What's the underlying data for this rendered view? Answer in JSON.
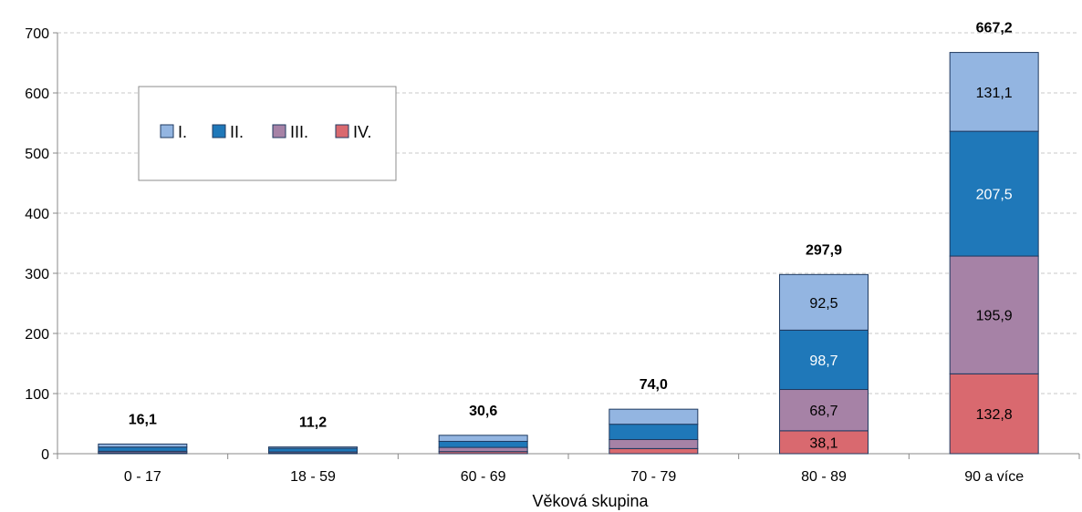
{
  "chart_data": {
    "type": "bar",
    "stacked": true,
    "title": "",
    "xlabel": "Věková skupina",
    "ylabel": "",
    "ylim": [
      0,
      700
    ],
    "yticks": [
      0,
      100,
      200,
      300,
      400,
      500,
      600,
      700
    ],
    "grid": true,
    "legend_position": "top-left",
    "categories": [
      "0 - 17",
      "18 - 59",
      "60 - 69",
      "70 - 79",
      "80 - 89",
      "90 a více"
    ],
    "series": [
      {
        "name": "IV.",
        "color": "#d9696f",
        "values": [
          1.5,
          1.0,
          3.5,
          8.5,
          38.1,
          132.8
        ],
        "labels": [
          "",
          "",
          "",
          "",
          "38,1",
          "132,8"
        ]
      },
      {
        "name": "III.",
        "color": "#a682a6",
        "values": [
          2.5,
          2.0,
          7.0,
          15.0,
          68.7,
          195.9
        ],
        "labels": [
          "",
          "",
          "",
          "",
          "68,7",
          "195,9"
        ]
      },
      {
        "name": "II.",
        "color": "#1f78b9",
        "values": [
          7.0,
          6.0,
          10.0,
          25.5,
          98.7,
          207.5
        ],
        "labels": [
          "",
          "",
          "",
          "",
          "98,7",
          "207,5"
        ]
      },
      {
        "name": "I.",
        "color": "#93b5e1",
        "values": [
          5.1,
          2.2,
          10.1,
          25.0,
          92.5,
          131.1
        ],
        "labels": [
          "",
          "",
          "",
          "",
          "92,5",
          "131,1"
        ]
      }
    ],
    "totals": [
      16.1,
      11.2,
      30.6,
      74.0,
      297.9,
      667.2
    ],
    "total_labels": [
      "16,1",
      "11,2",
      "30,6",
      "74,0",
      "297,9",
      "667,2"
    ]
  }
}
